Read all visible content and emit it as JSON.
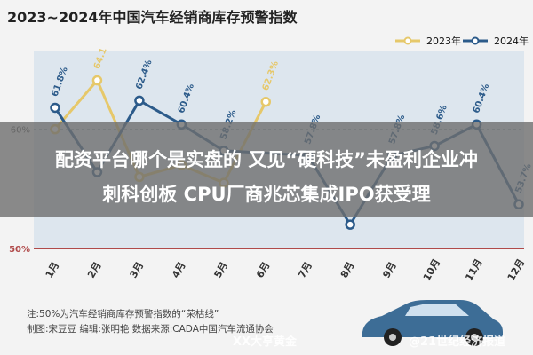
{
  "header": {
    "title": "2023~2024年中国汽车经销商库存预警指数"
  },
  "legend": {
    "series1": "2023年",
    "series2": "2024年"
  },
  "overlay": {
    "line1": "配资平台哪个是实盘的 又见“硬科技”未盈利企业冲",
    "line2": "刺科创板 CPU厂商兆芯集成IPO获受理"
  },
  "notes": {
    "line1": "注:50%为汽车经销商库存预警指数的“荣枯线”",
    "line2": "制图:宋豆豆    编辑:张明艳    数据来源:CADA中国汽车流通协会"
  },
  "watermarks": {
    "w1": "XX大亨黄金",
    "w2": "@21世纪经济报道"
  },
  "colors": {
    "series1": "#e6c86a",
    "series2": "#2c5b8a",
    "fill": "#dde6ee",
    "ref": "#b04a4a"
  },
  "chart_data": {
    "type": "line",
    "title": "2023~2024年中国汽车经销商库存预警指数",
    "categories": [
      "1月",
      "2月",
      "3月",
      "4月",
      "5月",
      "6月",
      "7月",
      "8月",
      "9月",
      "10月",
      "11月",
      "12月"
    ],
    "ylim": [
      50,
      66
    ],
    "yticks": [
      50,
      60
    ],
    "ytick_labels": [
      "50%",
      "60%"
    ],
    "reference_line": 50,
    "series": [
      {
        "name": "2023年",
        "values": [
          60.0,
          64.1,
          56.0,
          57.0,
          55.5,
          62.3,
          null,
          null,
          null,
          null,
          null,
          null
        ],
        "labels": [
          "",
          "64.1%",
          "",
          "",
          "",
          "62.3%",
          "",
          "",
          "",
          "",
          "",
          ""
        ]
      },
      {
        "name": "2024年",
        "values": [
          61.8,
          56.4,
          62.4,
          60.4,
          58.2,
          null,
          57.8,
          52.0,
          57.8,
          58.6,
          60.4,
          53.7
        ],
        "labels": [
          "61.8%",
          "",
          "62.4%",
          "60.4%",
          "58.2%",
          "",
          "57.8%",
          "",
          "57.8%",
          "58.6%",
          "60.4%",
          "53.7%"
        ]
      }
    ]
  }
}
